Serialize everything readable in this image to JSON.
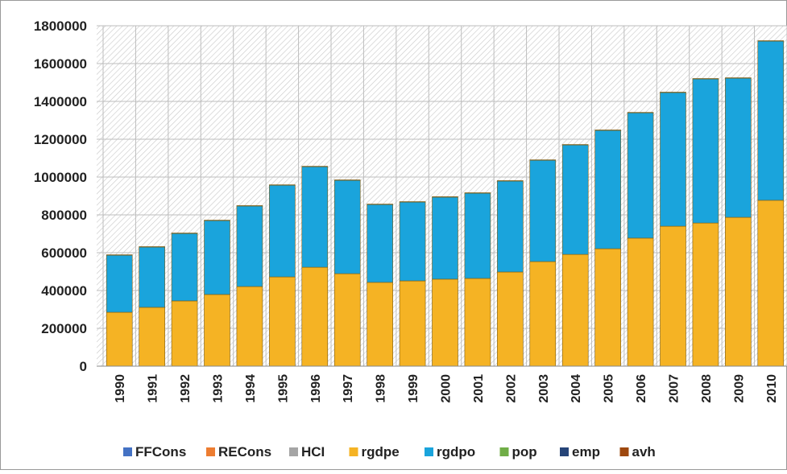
{
  "chart_data": {
    "type": "stacked-bar",
    "categories": [
      "1990",
      "1991",
      "1992",
      "1993",
      "1994",
      "1995",
      "1996",
      "1997",
      "1998",
      "1999",
      "2000",
      "2001",
      "2002",
      "2003",
      "2004",
      "2005",
      "2006",
      "2007",
      "2008",
      "2009",
      "2010"
    ],
    "series": [
      {
        "name": "FFCons",
        "color": "#4472c4",
        "values": [
          0,
          0,
          0,
          0,
          0,
          0,
          0,
          0,
          0,
          0,
          0,
          0,
          0,
          0,
          0,
          0,
          0,
          0,
          0,
          0,
          0
        ]
      },
      {
        "name": "RECons",
        "color": "#ed7d31",
        "values": [
          0,
          0,
          0,
          0,
          0,
          0,
          0,
          0,
          0,
          0,
          0,
          0,
          0,
          0,
          0,
          0,
          0,
          0,
          0,
          0,
          0
        ]
      },
      {
        "name": "HCI",
        "color": "#a5a5a5",
        "values": [
          0,
          0,
          0,
          0,
          0,
          0,
          0,
          0,
          0,
          0,
          0,
          0,
          0,
          0,
          0,
          0,
          0,
          0,
          0,
          0,
          0
        ]
      },
      {
        "name": "rgdpe",
        "color": "#f5b324",
        "values": [
          285000,
          311000,
          345000,
          379000,
          421000,
          472000,
          523000,
          489000,
          443000,
          451000,
          460000,
          464000,
          498000,
          553000,
          591000,
          621000,
          677000,
          740000,
          757000,
          787000,
          877000
        ]
      },
      {
        "name": "rgdpo",
        "color": "#1aa4dc",
        "values": [
          302000,
          319000,
          357000,
          391000,
          426000,
          485000,
          532000,
          494000,
          412000,
          417000,
          434000,
          451000,
          481000,
          536000,
          579000,
          626000,
          663000,
          707000,
          762000,
          736000,
          842000
        ]
      },
      {
        "name": "pop",
        "color": "#70ad47",
        "values": [
          0,
          0,
          0,
          0,
          0,
          0,
          0,
          0,
          0,
          0,
          0,
          0,
          0,
          0,
          0,
          0,
          0,
          0,
          0,
          0,
          0
        ]
      },
      {
        "name": "emp",
        "color": "#264478",
        "values": [
          0,
          0,
          0,
          0,
          0,
          0,
          0,
          0,
          0,
          0,
          0,
          0,
          0,
          0,
          0,
          0,
          0,
          0,
          0,
          0,
          0
        ]
      },
      {
        "name": "avh",
        "color": "#9e480e",
        "values": [
          2000,
          2000,
          2000,
          2000,
          2000,
          2000,
          2000,
          2000,
          2000,
          2000,
          2000,
          2000,
          2000,
          2000,
          2000,
          2000,
          2000,
          2000,
          2000,
          2000,
          2000
        ]
      }
    ],
    "ylim": [
      0,
      1800000
    ],
    "yticks": [
      0,
      200000,
      400000,
      600000,
      800000,
      1000000,
      1200000,
      1400000,
      1600000,
      1800000
    ],
    "grid": true,
    "legend": "bottom"
  }
}
